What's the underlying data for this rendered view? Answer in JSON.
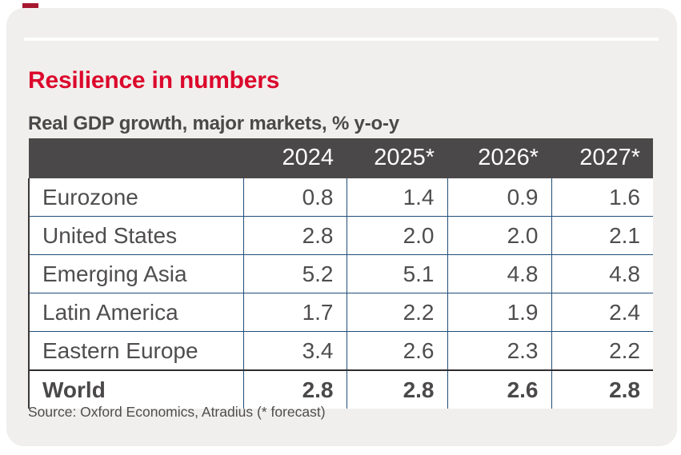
{
  "colors": {
    "accent_red": "#dc082c",
    "brand_mark_red": "#a5182e",
    "card_background": "#f0efed",
    "table_header_background": "#4a4848",
    "cell_border_blue": "#1f4e7a",
    "emphasis_border_dark": "#2e2c2c",
    "text_gray": "#4f4d4d"
  },
  "chart_data": {
    "type": "table",
    "title": "Resilience in numbers",
    "subtitle": "Real GDP growth, major markets, % y-o-y",
    "columns": [
      "2024",
      "2025*",
      "2026*",
      "2027*"
    ],
    "rows": [
      {
        "label": "Eurozone",
        "values": [
          0.8,
          1.4,
          0.9,
          1.6
        ],
        "emphasis": false
      },
      {
        "label": "United States",
        "values": [
          2.8,
          2.0,
          2.0,
          2.1
        ],
        "emphasis": false
      },
      {
        "label": "Emerging Asia",
        "values": [
          5.2,
          5.1,
          4.8,
          4.8
        ],
        "emphasis": false
      },
      {
        "label": "Latin America",
        "values": [
          1.7,
          2.2,
          1.9,
          2.4
        ],
        "emphasis": false
      },
      {
        "label": "Eastern Europe",
        "values": [
          3.4,
          2.6,
          2.3,
          2.2
        ],
        "emphasis": false
      },
      {
        "label": "World",
        "values": [
          2.8,
          2.8,
          2.6,
          2.8
        ],
        "emphasis": true
      }
    ],
    "value_format": "one_decimal",
    "source": "Source: Oxford Economics, Atradius (* forecast)"
  }
}
